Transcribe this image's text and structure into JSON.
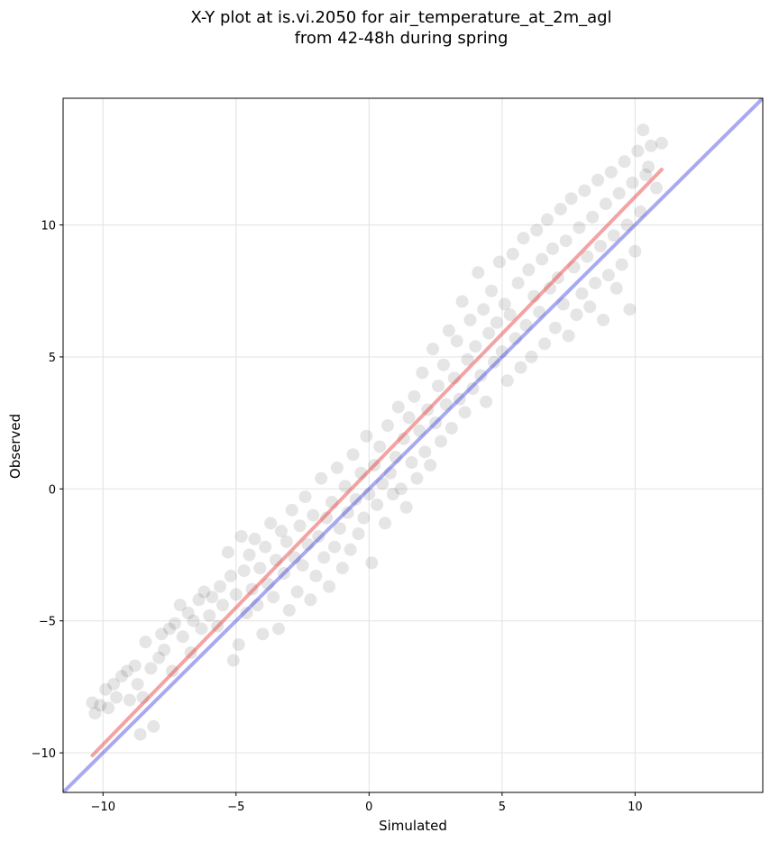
{
  "chart_data": {
    "type": "scatter",
    "title_lines": [
      "X-Y plot at is.vi.2050 for air_temperature_at_2m_agl",
      "from 42-48h during spring"
    ],
    "xlabel": "Simulated",
    "ylabel": "Observed",
    "xlim": [
      -11.5,
      14.8
    ],
    "ylim": [
      -11.5,
      14.8
    ],
    "xticks": [
      -10,
      -5,
      0,
      5,
      10
    ],
    "yticks": [
      -10,
      -5,
      0,
      5,
      10
    ],
    "xtick_labels": [
      "−10",
      "−5",
      "0",
      "5",
      "10"
    ],
    "ytick_labels": [
      "−10",
      "−5",
      "0",
      "5",
      "10"
    ],
    "grid": true,
    "colors": {
      "points": "#000000",
      "fit_line": "#e8474a",
      "identity_line": "#4040e0"
    },
    "fit_line": {
      "x": [
        -10.4,
        11.0
      ],
      "y": [
        -10.1,
        12.1
      ]
    },
    "identity_line": {
      "x": [
        -11.5,
        14.8
      ],
      "y": [
        -11.5,
        14.8
      ]
    },
    "points": [
      [
        -10.4,
        -8.1
      ],
      [
        -10.3,
        -8.5
      ],
      [
        -10.1,
        -8.2
      ],
      [
        -9.9,
        -7.6
      ],
      [
        -9.8,
        -8.3
      ],
      [
        -9.6,
        -7.4
      ],
      [
        -9.5,
        -7.9
      ],
      [
        -9.3,
        -7.1
      ],
      [
        -9.1,
        -6.9
      ],
      [
        -9.0,
        -8.0
      ],
      [
        -8.8,
        -6.7
      ],
      [
        -8.7,
        -7.4
      ],
      [
        -8.6,
        -9.3
      ],
      [
        -8.5,
        -7.9
      ],
      [
        -8.4,
        -5.8
      ],
      [
        -8.2,
        -6.8
      ],
      [
        -8.1,
        -9.0
      ],
      [
        -7.9,
        -6.4
      ],
      [
        -7.8,
        -5.5
      ],
      [
        -7.7,
        -6.1
      ],
      [
        -7.5,
        -5.3
      ],
      [
        -7.4,
        -6.9
      ],
      [
        -7.3,
        -5.1
      ],
      [
        -7.1,
        -4.4
      ],
      [
        -7.0,
        -5.6
      ],
      [
        -6.8,
        -4.7
      ],
      [
        -6.7,
        -6.2
      ],
      [
        -6.6,
        -5.0
      ],
      [
        -6.4,
        -4.2
      ],
      [
        -6.3,
        -5.3
      ],
      [
        -6.2,
        -3.9
      ],
      [
        -6.0,
        -4.8
      ],
      [
        -5.9,
        -4.1
      ],
      [
        -5.7,
        -5.2
      ],
      [
        -5.6,
        -3.7
      ],
      [
        -5.5,
        -4.4
      ],
      [
        -5.3,
        -2.4
      ],
      [
        -5.2,
        -3.3
      ],
      [
        -5.1,
        -6.5
      ],
      [
        -5.0,
        -4.0
      ],
      [
        -4.9,
        -5.9
      ],
      [
        -4.8,
        -1.8
      ],
      [
        -4.7,
        -3.1
      ],
      [
        -4.6,
        -4.7
      ],
      [
        -4.5,
        -2.5
      ],
      [
        -4.4,
        -3.8
      ],
      [
        -4.3,
        -1.9
      ],
      [
        -4.2,
        -4.4
      ],
      [
        -4.1,
        -3.0
      ],
      [
        -4.0,
        -5.5
      ],
      [
        -3.9,
        -2.2
      ],
      [
        -3.8,
        -3.6
      ],
      [
        -3.7,
        -1.3
      ],
      [
        -3.6,
        -4.1
      ],
      [
        -3.5,
        -2.7
      ],
      [
        -3.4,
        -5.3
      ],
      [
        -3.3,
        -1.6
      ],
      [
        -3.2,
        -3.2
      ],
      [
        -3.1,
        -2.0
      ],
      [
        -3.0,
        -4.6
      ],
      [
        -2.9,
        -0.8
      ],
      [
        -2.8,
        -2.6
      ],
      [
        -2.7,
        -3.9
      ],
      [
        -2.6,
        -1.4
      ],
      [
        -2.5,
        -2.9
      ],
      [
        -2.4,
        -0.3
      ],
      [
        -2.3,
        -2.1
      ],
      [
        -2.2,
        -4.2
      ],
      [
        -2.1,
        -1.0
      ],
      [
        -2.0,
        -3.3
      ],
      [
        -1.9,
        -1.8
      ],
      [
        -1.8,
        0.4
      ],
      [
        -1.7,
        -2.6
      ],
      [
        -1.6,
        -1.1
      ],
      [
        -1.5,
        -3.7
      ],
      [
        -1.4,
        -0.5
      ],
      [
        -1.3,
        -2.2
      ],
      [
        -1.2,
        0.8
      ],
      [
        -1.1,
        -1.5
      ],
      [
        -1.0,
        -3.0
      ],
      [
        -0.9,
        0.1
      ],
      [
        -0.8,
        -0.9
      ],
      [
        -0.7,
        -2.3
      ],
      [
        -0.6,
        1.3
      ],
      [
        -0.5,
        -0.4
      ],
      [
        -0.4,
        -1.7
      ],
      [
        -0.3,
        0.6
      ],
      [
        -0.2,
        -1.1
      ],
      [
        -0.1,
        2.0
      ],
      [
        0.0,
        -0.2
      ],
      [
        0.1,
        -2.8
      ],
      [
        0.2,
        0.9
      ],
      [
        0.3,
        -0.6
      ],
      [
        0.4,
        1.6
      ],
      [
        0.5,
        0.2
      ],
      [
        0.6,
        -1.3
      ],
      [
        0.7,
        2.4
      ],
      [
        0.8,
        0.6
      ],
      [
        0.9,
        -0.2
      ],
      [
        1.0,
        1.2
      ],
      [
        1.1,
        3.1
      ],
      [
        1.2,
        0.0
      ],
      [
        1.3,
        1.9
      ],
      [
        1.4,
        -0.7
      ],
      [
        1.5,
        2.7
      ],
      [
        1.6,
        1.0
      ],
      [
        1.7,
        3.5
      ],
      [
        1.8,
        0.4
      ],
      [
        1.9,
        2.2
      ],
      [
        2.0,
        4.4
      ],
      [
        2.1,
        1.4
      ],
      [
        2.2,
        3.0
      ],
      [
        2.3,
        0.9
      ],
      [
        2.4,
        5.3
      ],
      [
        2.5,
        2.5
      ],
      [
        2.6,
        3.9
      ],
      [
        2.7,
        1.8
      ],
      [
        2.8,
        4.7
      ],
      [
        2.9,
        3.2
      ],
      [
        3.0,
        6.0
      ],
      [
        3.1,
        2.3
      ],
      [
        3.2,
        4.2
      ],
      [
        3.3,
        5.6
      ],
      [
        3.4,
        3.4
      ],
      [
        3.5,
        7.1
      ],
      [
        3.6,
        2.9
      ],
      [
        3.7,
        4.9
      ],
      [
        3.8,
        6.4
      ],
      [
        3.9,
        3.8
      ],
      [
        4.0,
        5.4
      ],
      [
        4.1,
        8.2
      ],
      [
        4.2,
        4.3
      ],
      [
        4.3,
        6.8
      ],
      [
        4.4,
        3.3
      ],
      [
        4.5,
        5.9
      ],
      [
        4.6,
        7.5
      ],
      [
        4.7,
        4.8
      ],
      [
        4.8,
        6.3
      ],
      [
        4.9,
        8.6
      ],
      [
        5.0,
        5.2
      ],
      [
        5.1,
        7.0
      ],
      [
        5.2,
        4.1
      ],
      [
        5.3,
        6.6
      ],
      [
        5.4,
        8.9
      ],
      [
        5.5,
        5.7
      ],
      [
        5.6,
        7.8
      ],
      [
        5.7,
        4.6
      ],
      [
        5.8,
        9.5
      ],
      [
        5.9,
        6.2
      ],
      [
        6.0,
        8.3
      ],
      [
        6.1,
        5.0
      ],
      [
        6.2,
        7.3
      ],
      [
        6.3,
        9.8
      ],
      [
        6.4,
        6.7
      ],
      [
        6.5,
        8.7
      ],
      [
        6.6,
        5.5
      ],
      [
        6.7,
        10.2
      ],
      [
        6.8,
        7.6
      ],
      [
        6.9,
        9.1
      ],
      [
        7.0,
        6.1
      ],
      [
        7.1,
        8.0
      ],
      [
        7.2,
        10.6
      ],
      [
        7.3,
        7.0
      ],
      [
        7.4,
        9.4
      ],
      [
        7.5,
        5.8
      ],
      [
        7.6,
        11.0
      ],
      [
        7.7,
        8.4
      ],
      [
        7.8,
        6.6
      ],
      [
        7.9,
        9.9
      ],
      [
        8.0,
        7.4
      ],
      [
        8.1,
        11.3
      ],
      [
        8.2,
        8.8
      ],
      [
        8.3,
        6.9
      ],
      [
        8.4,
        10.3
      ],
      [
        8.5,
        7.8
      ],
      [
        8.6,
        11.7
      ],
      [
        8.7,
        9.2
      ],
      [
        8.8,
        6.4
      ],
      [
        8.9,
        10.8
      ],
      [
        9.0,
        8.1
      ],
      [
        9.1,
        12.0
      ],
      [
        9.2,
        9.6
      ],
      [
        9.3,
        7.6
      ],
      [
        9.4,
        11.2
      ],
      [
        9.5,
        8.5
      ],
      [
        9.6,
        12.4
      ],
      [
        9.7,
        10.0
      ],
      [
        9.8,
        6.8
      ],
      [
        9.9,
        11.6
      ],
      [
        10.0,
        9.0
      ],
      [
        10.1,
        12.8
      ],
      [
        10.2,
        10.5
      ],
      [
        10.3,
        13.6
      ],
      [
        10.4,
        11.9
      ],
      [
        10.5,
        12.2
      ],
      [
        10.6,
        13.0
      ],
      [
        10.8,
        11.4
      ],
      [
        11.0,
        13.1
      ]
    ]
  }
}
